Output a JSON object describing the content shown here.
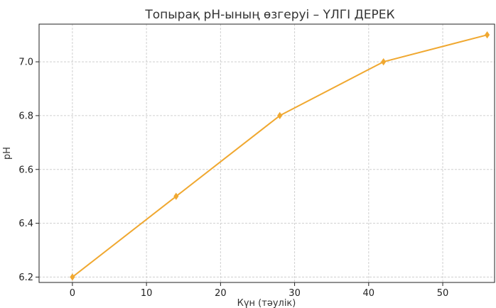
{
  "chart_data": {
    "type": "line",
    "title": "Топырақ pH-ының өзгеруі – ҮЛГІ ДЕРЕК",
    "xlabel": "Күн (тәулік)",
    "ylabel": "pH",
    "xlim": [
      -4.5,
      57
    ],
    "ylim": [
      6.18,
      7.14
    ],
    "xticks": [
      0,
      10,
      20,
      30,
      40,
      50
    ],
    "yticks": [
      6.2,
      6.4,
      6.6,
      6.8,
      7.0
    ],
    "grid": true,
    "series": [
      {
        "color": "#f0a830",
        "marker": "diamond",
        "x": [
          0,
          14,
          28,
          42,
          56
        ],
        "y": [
          6.2,
          6.5,
          6.8,
          7.0,
          7.1
        ]
      }
    ]
  }
}
